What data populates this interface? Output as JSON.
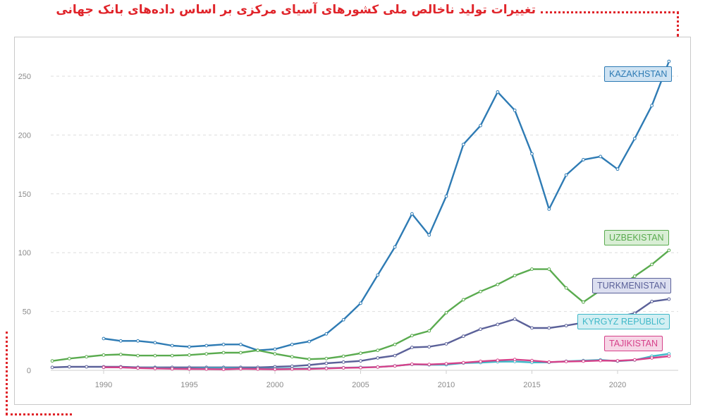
{
  "title": "تغییرات تولید ناخالص ملی کشورهای آسیای مرکزی بر اساس داده‌های بانک جهانی",
  "chart_data": {
    "type": "line",
    "grid": true,
    "ylim": [
      0,
      260
    ],
    "xlim": [
      1987,
      2023
    ],
    "yticks": [
      0,
      50,
      100,
      150,
      200,
      250
    ],
    "xticks": [
      1990,
      1995,
      2000,
      2005,
      2010,
      2015,
      2020
    ],
    "series": [
      {
        "name": "KAZAKHSTAN",
        "color": "#2e7bb4",
        "label_bg": "#cfe3f3",
        "x": [
          1990,
          1991,
          1992,
          1993,
          1994,
          1995,
          1996,
          1997,
          1998,
          1999,
          2000,
          2001,
          2002,
          2003,
          2004,
          2005,
          2006,
          2007,
          2008,
          2009,
          2010,
          2011,
          2012,
          2013,
          2014,
          2015,
          2016,
          2017,
          2018,
          2019,
          2020,
          2021,
          2022,
          2023
        ],
        "values": [
          27,
          25,
          25,
          23.5,
          21,
          20,
          21,
          22,
          22,
          17,
          18,
          22,
          24.5,
          31,
          43,
          57,
          81,
          104.8,
          133,
          115,
          148,
          192,
          208,
          236.6,
          221,
          184,
          137,
          166,
          179,
          181.7,
          171,
          197,
          225,
          262.6
        ]
      },
      {
        "name": "UZBEKISTAN",
        "color": "#5aab4f",
        "label_bg": "#d9eed5",
        "x": [
          1987,
          1988,
          1989,
          1990,
          1991,
          1992,
          1993,
          1994,
          1995,
          1996,
          1997,
          1998,
          1999,
          2000,
          2001,
          2002,
          2003,
          2004,
          2005,
          2006,
          2007,
          2008,
          2009,
          2010,
          2011,
          2012,
          2013,
          2014,
          2015,
          2016,
          2017,
          2018,
          2019,
          2020,
          2021,
          2022,
          2023
        ],
        "values": [
          8,
          10,
          11.5,
          13,
          13.5,
          12.5,
          12.5,
          12.5,
          13,
          14,
          15,
          15,
          17,
          14,
          11.5,
          9.5,
          10,
          12,
          14.5,
          17,
          22,
          29.5,
          33.5,
          49,
          60,
          67,
          73,
          80.5,
          86,
          86,
          70,
          58,
          68,
          70,
          80,
          90,
          102
        ]
      },
      {
        "name": "TURKMENISTAN",
        "color": "#5b6199",
        "label_bg": "#dcdff0",
        "x": [
          1987,
          1988,
          1989,
          1990,
          1991,
          1992,
          1993,
          1994,
          1995,
          1996,
          1997,
          1998,
          1999,
          2000,
          2001,
          2002,
          2003,
          2004,
          2005,
          2006,
          2007,
          2008,
          2009,
          2010,
          2011,
          2012,
          2013,
          2014,
          2015,
          2016,
          2017,
          2018,
          2019,
          2020,
          2021,
          2022,
          2023
        ],
        "values": [
          2.5,
          3,
          3,
          3,
          3,
          2.5,
          2.5,
          2.5,
          2.5,
          2.5,
          2.5,
          2.5,
          2.5,
          3,
          3.5,
          4.5,
          6,
          7,
          8,
          10.5,
          12.5,
          19.5,
          20,
          22.5,
          29,
          35,
          39,
          43.5,
          36,
          36,
          38,
          40.5,
          45,
          45.5,
          48.5,
          58.5,
          60.5
        ]
      },
      {
        "name": "KYRGYZ REPUBLIC",
        "color": "#3fb8c8",
        "label_bg": "#d3eff3",
        "x": [
          1990,
          1991,
          1992,
          1993,
          1994,
          1995,
          1996,
          1997,
          1998,
          1999,
          2000,
          2001,
          2002,
          2003,
          2004,
          2005,
          2006,
          2007,
          2008,
          2009,
          2010,
          2011,
          2012,
          2013,
          2014,
          2015,
          2016,
          2017,
          2018,
          2019,
          2020,
          2021,
          2022,
          2023
        ],
        "values": [
          2.5,
          2.5,
          2,
          2,
          1.5,
          1.5,
          1.8,
          1.8,
          1.7,
          1.3,
          1.4,
          1.5,
          1.6,
          1.9,
          2.2,
          2.5,
          2.8,
          3.8,
          5.1,
          4.7,
          4.8,
          6.2,
          6.6,
          7.3,
          7.5,
          6.7,
          6.8,
          7.7,
          8.3,
          8.9,
          7.8,
          8.7,
          12,
          14
        ]
      },
      {
        "name": "TAJIKISTAN",
        "color": "#d6418a",
        "label_bg": "#f6d6e6",
        "x": [
          1990,
          1991,
          1992,
          1993,
          1994,
          1995,
          1996,
          1997,
          1998,
          1999,
          2000,
          2001,
          2002,
          2003,
          2004,
          2005,
          2006,
          2007,
          2008,
          2009,
          2010,
          2011,
          2012,
          2013,
          2014,
          2015,
          2016,
          2017,
          2018,
          2019,
          2020,
          2021,
          2022,
          2023
        ],
        "values": [
          2.6,
          2.5,
          1.9,
          1.6,
          1.3,
          1.2,
          1.1,
          0.9,
          1.3,
          1.1,
          0.9,
          1.1,
          1.2,
          1.6,
          2.1,
          2.3,
          2.8,
          3.7,
          5.2,
          5,
          5.6,
          6.5,
          7.6,
          8.5,
          9.2,
          8.3,
          7,
          7.5,
          7.8,
          8.3,
          8.1,
          8.9,
          10.5,
          12
        ]
      }
    ]
  }
}
